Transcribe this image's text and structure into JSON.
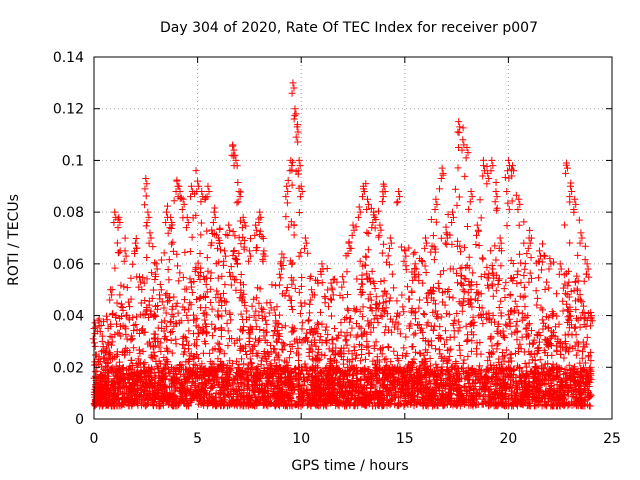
{
  "chart_data": {
    "type": "scatter",
    "title": "Day 304 of 2020, Rate Of TEC Index for receiver p007",
    "xlabel": "GPS time / hours",
    "ylabel": "ROTI / TECUs",
    "xlim": [
      0,
      25
    ],
    "ylim": [
      0,
      0.14
    ],
    "x_ticks": [
      0,
      5,
      10,
      15,
      20,
      25
    ],
    "x_tick_labels": [
      "0",
      "5",
      "10",
      "15",
      "20",
      "25"
    ],
    "y_ticks": [
      0,
      0.02,
      0.04,
      0.06,
      0.08,
      0.1,
      0.12,
      0.14
    ],
    "y_tick_labels": [
      "0",
      "0.02",
      "0.04",
      "0.06",
      "0.08",
      "0.1",
      "0.12",
      "0.14"
    ],
    "grid": true,
    "marker": "plus",
    "marker_color": "#ff0000",
    "series": [
      {
        "name": "p007",
        "points": [
          [
            0.0,
            0.035
          ],
          [
            0.2,
            0.038
          ],
          [
            0.4,
            0.03
          ],
          [
            0.8,
            0.05
          ],
          [
            1.0,
            0.08
          ],
          [
            1.2,
            0.078
          ],
          [
            1.5,
            0.065
          ],
          [
            2.0,
            0.068
          ],
          [
            2.2,
            0.055
          ],
          [
            2.5,
            0.093
          ],
          [
            2.6,
            0.08
          ],
          [
            2.7,
            0.072
          ],
          [
            3.0,
            0.06
          ],
          [
            3.2,
            0.052
          ],
          [
            3.5,
            0.08
          ],
          [
            3.7,
            0.078
          ],
          [
            4.0,
            0.092
          ],
          [
            4.1,
            0.09
          ],
          [
            4.3,
            0.085
          ],
          [
            4.5,
            0.078
          ],
          [
            4.7,
            0.09
          ],
          [
            5.0,
            0.092
          ],
          [
            5.2,
            0.088
          ],
          [
            5.5,
            0.09
          ],
          [
            5.8,
            0.08
          ],
          [
            6.0,
            0.07
          ],
          [
            6.3,
            0.065
          ],
          [
            6.5,
            0.075
          ],
          [
            6.7,
            0.106
          ],
          [
            6.8,
            0.102
          ],
          [
            7.0,
            0.088
          ],
          [
            7.2,
            0.078
          ],
          [
            7.5,
            0.065
          ],
          [
            7.8,
            0.075
          ],
          [
            8.0,
            0.08
          ],
          [
            8.2,
            0.065
          ],
          [
            8.5,
            0.045
          ],
          [
            9.0,
            0.06
          ],
          [
            9.3,
            0.09
          ],
          [
            9.5,
            0.1
          ],
          [
            9.6,
            0.13
          ],
          [
            9.7,
            0.12
          ],
          [
            9.8,
            0.113
          ],
          [
            9.9,
            0.1
          ],
          [
            10.0,
            0.09
          ],
          [
            10.2,
            0.07
          ],
          [
            10.5,
            0.05
          ],
          [
            11.0,
            0.06
          ],
          [
            11.5,
            0.05
          ],
          [
            12.0,
            0.055
          ],
          [
            12.3,
            0.068
          ],
          [
            12.5,
            0.075
          ],
          [
            12.8,
            0.082
          ],
          [
            13.0,
            0.09
          ],
          [
            13.2,
            0.085
          ],
          [
            13.5,
            0.08
          ],
          [
            13.8,
            0.075
          ],
          [
            14.0,
            0.09
          ],
          [
            14.3,
            0.07
          ],
          [
            14.7,
            0.088
          ],
          [
            15.0,
            0.065
          ],
          [
            15.5,
            0.06
          ],
          [
            16.0,
            0.07
          ],
          [
            16.5,
            0.085
          ],
          [
            16.8,
            0.097
          ],
          [
            17.0,
            0.072
          ],
          [
            17.3,
            0.08
          ],
          [
            17.6,
            0.115
          ],
          [
            17.8,
            0.108
          ],
          [
            18.0,
            0.105
          ],
          [
            18.2,
            0.088
          ],
          [
            18.5,
            0.075
          ],
          [
            18.8,
            0.098
          ],
          [
            19.0,
            0.095
          ],
          [
            19.2,
            0.1
          ],
          [
            19.4,
            0.088
          ],
          [
            19.6,
            0.07
          ],
          [
            20.0,
            0.1
          ],
          [
            20.2,
            0.098
          ],
          [
            20.5,
            0.085
          ],
          [
            21.0,
            0.07
          ],
          [
            21.5,
            0.065
          ],
          [
            22.0,
            0.062
          ],
          [
            22.5,
            0.06
          ],
          [
            22.8,
            0.099
          ],
          [
            23.0,
            0.09
          ],
          [
            23.2,
            0.085
          ],
          [
            23.5,
            0.072
          ],
          [
            23.8,
            0.06
          ],
          [
            24.0,
            0.04
          ]
        ]
      }
    ],
    "density_note_values": {
      "baseline_range": [
        0.005,
        0.02
      ],
      "typical_range": [
        0.01,
        0.06
      ]
    }
  }
}
